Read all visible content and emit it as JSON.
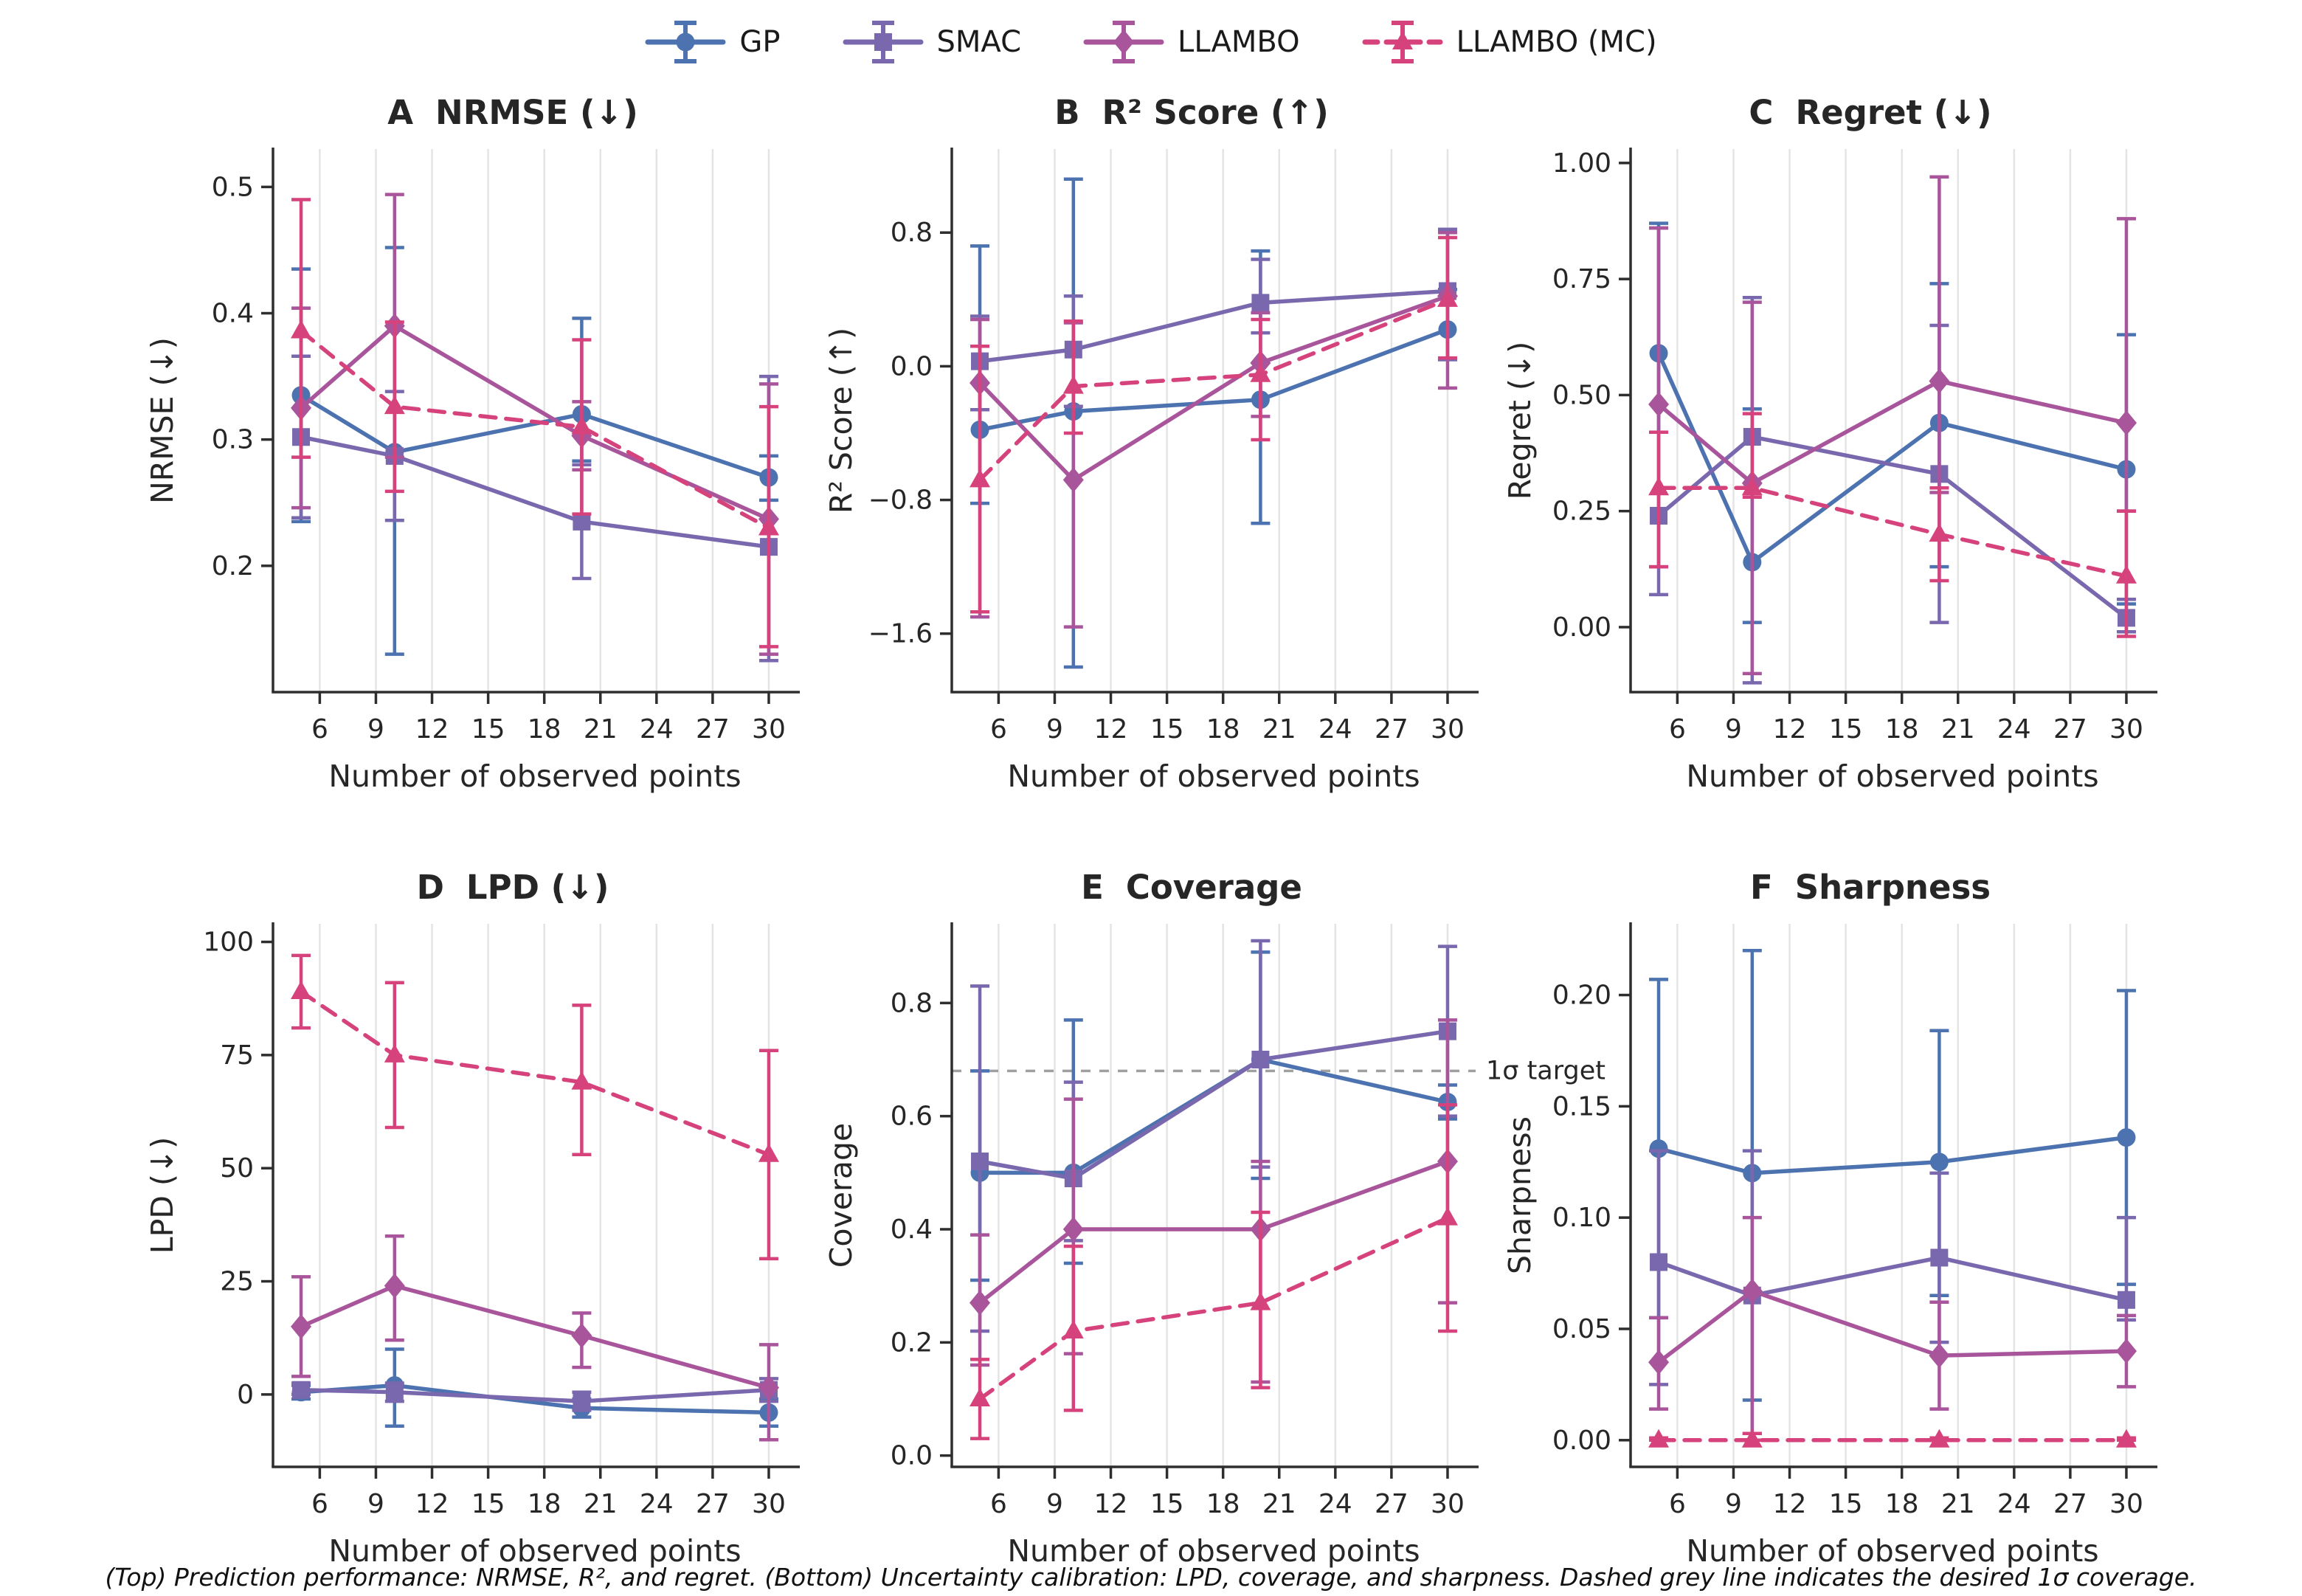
{
  "caption": "(Top) Prediction performance: NRMSE, R², and regret.  (Bottom) Uncertainty calibration: LPD, coverage, and sharpness.  Dashed grey line indicates the desired 1σ coverage.",
  "chart_data": {
    "type": "line",
    "x": [
      5,
      10,
      20,
      30
    ],
    "xticks": [
      6,
      9,
      12,
      15,
      18,
      21,
      24,
      27,
      30
    ],
    "xlim": [
      3.5,
      31.5
    ],
    "xlabel": "Number of observed points",
    "grid": "vertical-only",
    "legend_position": "top-center",
    "series_meta": [
      {
        "id": "gp",
        "label": "GP",
        "color": "#4C72B0",
        "marker": "circle",
        "linestyle": "solid"
      },
      {
        "id": "smac",
        "label": "SMAC",
        "color": "#7A68AE",
        "marker": "square",
        "linestyle": "solid"
      },
      {
        "id": "llambo",
        "label": "LLAMBO",
        "color": "#A9559B",
        "marker": "diamond",
        "linestyle": "solid"
      },
      {
        "id": "mc",
        "label": "LLAMBO (MC)",
        "color": "#D6437C",
        "marker": "triangle",
        "linestyle": "dashed"
      }
    ],
    "panels": [
      {
        "id": "A",
        "title_letter": "A",
        "title_text": "NRMSE (↓)",
        "ylabel": "NRMSE (↓)",
        "yticks": [
          0.5,
          0.4,
          0.3,
          0.2
        ],
        "ytick_labels": [
          "0.5",
          "0.4",
          "0.3",
          "0.2"
        ],
        "ylim": [
          0.1,
          0.53
        ],
        "series": [
          {
            "id": "gp",
            "y": [
              0.335,
              0.29,
              0.32,
              0.27
            ],
            "lo": [
              0.235,
              0.13,
              0.283,
              0.252
            ],
            "hi": [
              0.435,
              0.452,
              0.396,
              0.287
            ]
          },
          {
            "id": "smac",
            "y": [
              0.302,
              0.287,
              0.235,
              0.215
            ],
            "lo": [
              0.238,
              0.236,
              0.19,
              0.125
            ],
            "hi": [
              0.366,
              0.338,
              0.28,
              0.35
            ]
          },
          {
            "id": "llambo",
            "y": [
              0.325,
              0.39,
              0.303,
              0.237
            ],
            "lo": [
              0.246,
              0.286,
              0.276,
              0.13
            ],
            "hi": [
              0.404,
              0.494,
              0.33,
              0.344
            ]
          },
          {
            "id": "mc",
            "y": [
              0.386,
              0.326,
              0.31,
              0.23
            ],
            "lo": [
              0.286,
              0.259,
              0.241,
              0.136
            ],
            "hi": [
              0.49,
              0.393,
              0.379,
              0.326
            ]
          }
        ]
      },
      {
        "id": "B",
        "title_letter": "B",
        "title_text": "R² Score (↑)",
        "ylabel": "R² Score (↑)",
        "yticks": [
          0.8,
          0.0,
          -0.8,
          -1.6
        ],
        "ytick_labels": [
          "0.8",
          "0.0",
          "−0.8",
          "−1.6"
        ],
        "ylim": [
          -1.95,
          1.3
        ],
        "series": [
          {
            "id": "gp",
            "y": [
              -0.38,
              -0.27,
              -0.2,
              0.22
            ],
            "lo": [
              -0.82,
              -1.8,
              -0.94,
              0.04
            ],
            "hi": [
              0.72,
              1.12,
              0.69,
              0.46
            ]
          },
          {
            "id": "smac",
            "y": [
              0.03,
              0.1,
              0.38,
              0.45
            ],
            "lo": [
              -0.26,
              -0.24,
              0.2,
              0.04
            ],
            "hi": [
              0.3,
              0.42,
              0.64,
              0.82
            ]
          },
          {
            "id": "llambo",
            "y": [
              -0.1,
              -0.68,
              0.02,
              0.42
            ],
            "lo": [
              -1.5,
              -1.56,
              -0.3,
              -0.13
            ],
            "hi": [
              0.28,
              0.26,
              0.32,
              0.8
            ]
          },
          {
            "id": "mc",
            "y": [
              -0.68,
              -0.12,
              -0.05,
              0.4
            ],
            "lo": [
              -1.47,
              -0.4,
              -0.44,
              0.05
            ],
            "hi": [
              0.12,
              0.27,
              0.28,
              0.77
            ]
          }
        ]
      },
      {
        "id": "C",
        "title_letter": "C",
        "title_text": "Regret (↓)",
        "ylabel": "Regret (↓)",
        "yticks": [
          1.0,
          0.75,
          0.5,
          0.25,
          0.0
        ],
        "ytick_labels": [
          "1.00",
          "0.75",
          "0.50",
          "0.25",
          "0.00"
        ],
        "ylim": [
          -0.14,
          1.03
        ],
        "series": [
          {
            "id": "gp",
            "y": [
              0.59,
              0.14,
              0.44,
              0.34
            ],
            "lo": [
              0.42,
              0.01,
              0.13,
              0.05
            ],
            "hi": [
              0.87,
              0.47,
              0.74,
              0.63
            ]
          },
          {
            "id": "smac",
            "y": [
              0.24,
              0.41,
              0.33,
              0.02
            ],
            "lo": [
              0.07,
              -0.12,
              0.01,
              -0.01
            ],
            "hi": [
              0.86,
              0.71,
              0.65,
              0.06
            ]
          },
          {
            "id": "llambo",
            "y": [
              0.48,
              0.31,
              0.53,
              0.44
            ],
            "lo": [
              0.13,
              -0.1,
              0.29,
              0.25
            ],
            "hi": [
              0.86,
              0.7,
              0.97,
              0.88
            ]
          },
          {
            "id": "mc",
            "y": [
              0.3,
              0.3,
              0.2,
              0.11
            ],
            "lo": [
              0.13,
              0.28,
              0.1,
              -0.02
            ],
            "hi": [
              0.42,
              0.46,
              0.3,
              0.25
            ]
          }
        ]
      },
      {
        "id": "D",
        "title_letter": "D",
        "title_text": "LPD (↓)",
        "ylabel": "LPD (↓)",
        "yticks": [
          100,
          75,
          50,
          25,
          0
        ],
        "ytick_labels": [
          "100",
          "75",
          "50",
          "25",
          "0"
        ],
        "ylim": [
          -16,
          104
        ],
        "series": [
          {
            "id": "gp",
            "y": [
              0.5,
              2.0,
              -3.0,
              -4.0
            ],
            "lo": [
              -1,
              -7,
              -5,
              -7
            ],
            "hi": [
              2,
              10,
              -1,
              -1
            ]
          },
          {
            "id": "smac",
            "y": [
              1.0,
              0.5,
              -1.5,
              1.0
            ],
            "lo": [
              0,
              -1.5,
              -3.5,
              -1.5
            ],
            "hi": [
              2.5,
              2.5,
              0.5,
              3.5
            ]
          },
          {
            "id": "llambo",
            "y": [
              15,
              24,
              13,
              1.5
            ],
            "lo": [
              4,
              12,
              6,
              -10
            ],
            "hi": [
              26,
              35,
              18,
              11
            ]
          },
          {
            "id": "mc",
            "y": [
              89,
              75,
              69,
              53
            ],
            "lo": [
              81,
              59,
              53,
              30
            ],
            "hi": [
              97,
              91,
              86,
              76
            ]
          }
        ]
      },
      {
        "id": "E",
        "title_letter": "E",
        "title_text": "Coverage",
        "ylabel": "Coverage",
        "yticks": [
          0.8,
          0.6,
          0.4,
          0.2,
          0.0
        ],
        "ytick_labels": [
          "0.8",
          "0.6",
          "0.4",
          "0.2",
          "0.0"
        ],
        "ylim": [
          -0.02,
          0.94
        ],
        "ref_line": {
          "value": 0.68,
          "label": "1σ target",
          "color": "#a0a0a0"
        },
        "series": [
          {
            "id": "gp",
            "y": [
              0.5,
              0.5,
              0.7,
              0.625
            ],
            "lo": [
              0.31,
              0.34,
              0.49,
              0.595
            ],
            "hi": [
              0.68,
              0.77,
              0.89,
              0.655
            ]
          },
          {
            "id": "smac",
            "y": [
              0.52,
              0.49,
              0.7,
              0.75
            ],
            "lo": [
              0.22,
              0.38,
              0.51,
              0.6
            ],
            "hi": [
              0.83,
              0.66,
              0.91,
              0.9
            ]
          },
          {
            "id": "llambo",
            "y": [
              0.27,
              0.4,
              0.4,
              0.52
            ],
            "lo": [
              0.16,
              0.18,
              0.13,
              0.27
            ],
            "hi": [
              0.39,
              0.63,
              0.52,
              0.77
            ]
          },
          {
            "id": "mc",
            "y": [
              0.1,
              0.22,
              0.27,
              0.42
            ],
            "lo": [
              0.03,
              0.08,
              0.12,
              0.22
            ],
            "hi": [
              0.17,
              0.37,
              0.43,
              0.62
            ]
          }
        ]
      },
      {
        "id": "F",
        "title_letter": "F",
        "title_text": "Sharpness",
        "ylabel": "Sharpness",
        "yticks": [
          0.2,
          0.15,
          0.1,
          0.05,
          0.0
        ],
        "ytick_labels": [
          "0.20",
          "0.15",
          "0.10",
          "0.05",
          "0.00"
        ],
        "ylim": [
          -0.012,
          0.232
        ],
        "series": [
          {
            "id": "gp",
            "y": [
              0.131,
              0.12,
              0.125,
              0.136
            ],
            "lo": [
              0.055,
              0.018,
              0.065,
              0.07
            ],
            "hi": [
              0.207,
              0.22,
              0.184,
              0.202
            ]
          },
          {
            "id": "smac",
            "y": [
              0.08,
              0.065,
              0.082,
              0.063
            ],
            "lo": [
              0.025,
              0.003,
              0.044,
              0.054
            ],
            "hi": [
              0.13,
              0.13,
              0.12,
              0.1
            ]
          },
          {
            "id": "llambo",
            "y": [
              0.035,
              0.067,
              0.038,
              0.04
            ],
            "lo": [
              0.014,
              0.003,
              0.014,
              0.024
            ],
            "hi": [
              0.055,
              0.1,
              0.062,
              0.056
            ]
          },
          {
            "id": "mc",
            "y": [
              0.0,
              0.0,
              0.0,
              0.0
            ],
            "lo": [
              0.0,
              0.0,
              0.0,
              0.0
            ],
            "hi": [
              0.001,
              0.003,
              0.001,
              0.001
            ]
          }
        ]
      }
    ]
  },
  "style": {
    "text_color": "#262626",
    "spine_color": "#2e2e2e",
    "grid_color": "#e4e4e4",
    "ref_label_color": "#8a8a8a"
  }
}
